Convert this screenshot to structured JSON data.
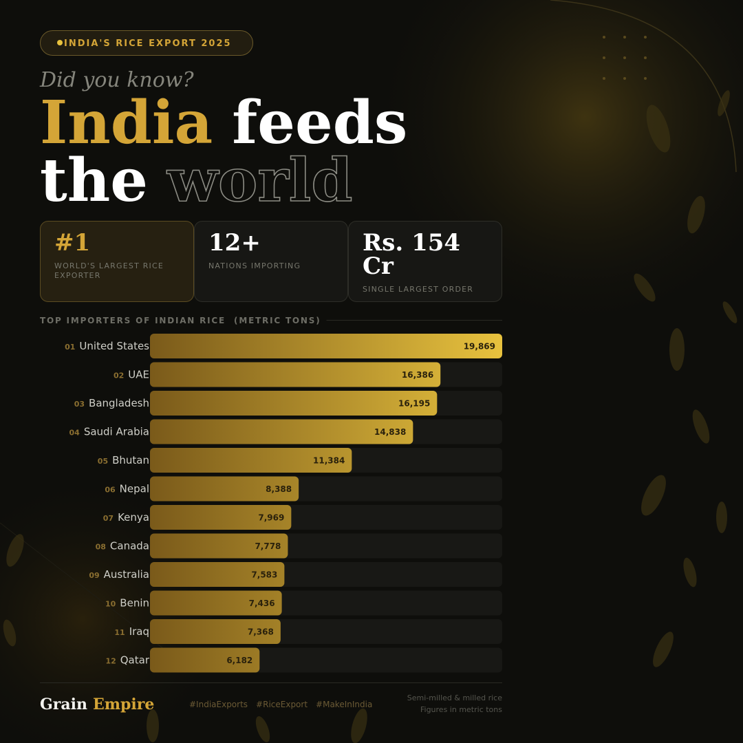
{
  "badge": "INDIA'S RICE EXPORT 2025",
  "kicker": "Did you know?",
  "headline": [
    "India",
    "feeds",
    "the",
    "world"
  ],
  "stats": [
    {
      "value": "#1",
      "label": "WORLD'S LARGEST RICE EXPORTER"
    },
    {
      "value": "12+",
      "label": "NATIONS IMPORTING"
    },
    {
      "value": "Rs. 154 Cr",
      "label": "SINGLE LARGEST ORDER"
    }
  ],
  "chart_data": {
    "type": "bar",
    "orientation": "horizontal",
    "title": "TOP IMPORTERS OF INDIAN RICE",
    "unit": "(METRIC TONS)",
    "ranks": [
      "01",
      "02",
      "03",
      "04",
      "05",
      "06",
      "07",
      "08",
      "09",
      "10",
      "11",
      "12"
    ],
    "categories": [
      "United States",
      "UAE",
      "Bangladesh",
      "Saudi Arabia",
      "Bhutan",
      "Nepal",
      "Kenya",
      "Canada",
      "Australia",
      "Benin",
      "Iraq",
      "Qatar"
    ],
    "values": [
      19869,
      16386,
      16195,
      14838,
      11384,
      8388,
      7969,
      7778,
      7583,
      7436,
      7368,
      6182
    ],
    "value_labels": [
      "19,869",
      "16,386",
      "16,195",
      "14,838",
      "11,384",
      "8,388",
      "7,969",
      "7,778",
      "7,583",
      "7,436",
      "7,368",
      "6,182"
    ],
    "xlim": [
      0,
      19869
    ],
    "color": "#e8c23e",
    "color_start": "#7a5a1a"
  },
  "footer": {
    "brand": [
      "Grain",
      "Empire"
    ],
    "hashtags": [
      "#IndiaExports",
      "#RiceExport",
      "#MakeInIndia"
    ],
    "notes": [
      "Semi-milled & milled rice",
      "Figures in metric tons"
    ]
  }
}
